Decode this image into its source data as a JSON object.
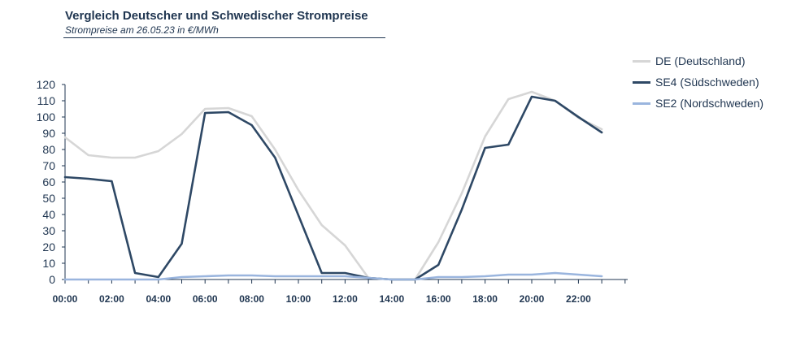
{
  "chart_data": {
    "type": "line",
    "title": "Vergleich Deutscher und Schwedischer Strompreise",
    "subtitle": "Strompreise am 26.05.23 in €/MWh",
    "xlabel": "",
    "ylabel": "",
    "ylim": [
      0,
      120
    ],
    "yticks": [
      "0",
      "10",
      "20",
      "30",
      "40",
      "50",
      "60",
      "70",
      "80",
      "90",
      "100",
      "110",
      "120"
    ],
    "xticks": [
      "00:00",
      "02:00",
      "04:00",
      "06:00",
      "08:00",
      "10:00",
      "12:00",
      "14:00",
      "16:00",
      "18:00",
      "20:00",
      "22:00"
    ],
    "hours": [
      0,
      1,
      2,
      3,
      4,
      5,
      6,
      7,
      8,
      9,
      10,
      11,
      12,
      13,
      14,
      15,
      16,
      17,
      18,
      19,
      20,
      21,
      22,
      23
    ],
    "grid": false,
    "legend_position": "right",
    "series": [
      {
        "name": "DE (Deutschland)",
        "color": "#d6d6d6",
        "values": [
          87.5,
          76.5,
          75,
          75,
          79,
          89.5,
          105,
          105.5,
          100.5,
          80,
          55,
          33.5,
          21,
          1,
          0,
          0,
          23,
          53,
          88,
          111,
          115.5,
          110,
          99.5,
          92.5
        ]
      },
      {
        "name": "SE4 (Südschweden)",
        "color": "#2e4865",
        "values": [
          63,
          62,
          60.5,
          4,
          1.5,
          22,
          102.5,
          103,
          95,
          75,
          39.5,
          4,
          4,
          1,
          0,
          0,
          9,
          43,
          81,
          83,
          112.5,
          110,
          100,
          90.5
        ]
      },
      {
        "name": "SE2 (Nordschweden)",
        "color": "#9ab5de",
        "values": [
          0,
          0,
          0,
          0,
          0,
          1.5,
          2,
          2.5,
          2.5,
          2,
          2,
          2,
          2,
          1,
          0,
          0,
          1.5,
          1.5,
          2,
          3,
          3,
          4,
          3,
          2
        ]
      }
    ]
  }
}
